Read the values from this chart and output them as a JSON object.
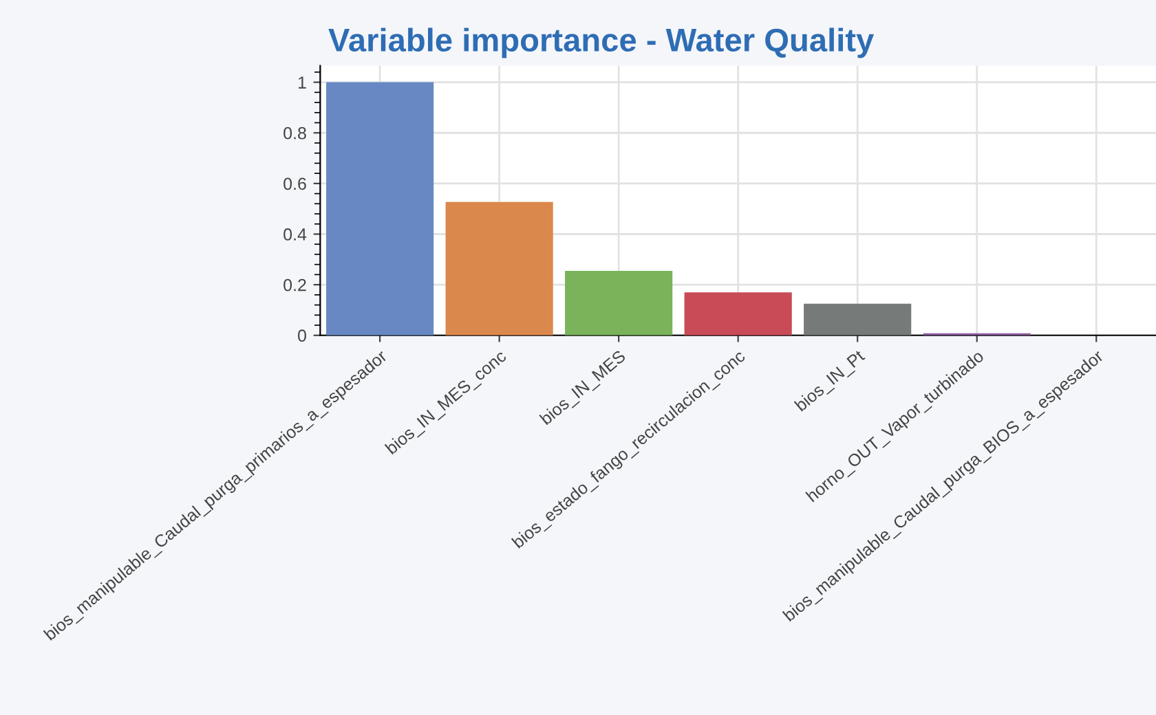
{
  "chart_data": {
    "type": "bar",
    "title": "Variable importance - Water Quality",
    "categories": [
      "bios_manipulable_Caudal_purga_primarios_a_espesador",
      "bios_IN_MES_conc",
      "bios_IN_MES",
      "bios_estado_fango_recirculacion_conc",
      "bios_IN_Pt",
      "horno_OUT_Vapor_turbinado",
      "bios_manipulable_Caudal_purga_BIOS_a_espesador"
    ],
    "values": [
      1,
      0.527,
      0.255,
      0.17,
      0.125,
      0.008,
      null
    ],
    "colors": [
      "#6788c2",
      "#db884c",
      "#7ab35a",
      "#c94b57",
      "#767b7a",
      "#8e5ea0",
      null
    ],
    "ylim": [
      0,
      1.065
    ],
    "yticks": [
      0,
      0.2,
      0.4,
      0.6,
      0.8,
      1
    ],
    "grid": true
  }
}
